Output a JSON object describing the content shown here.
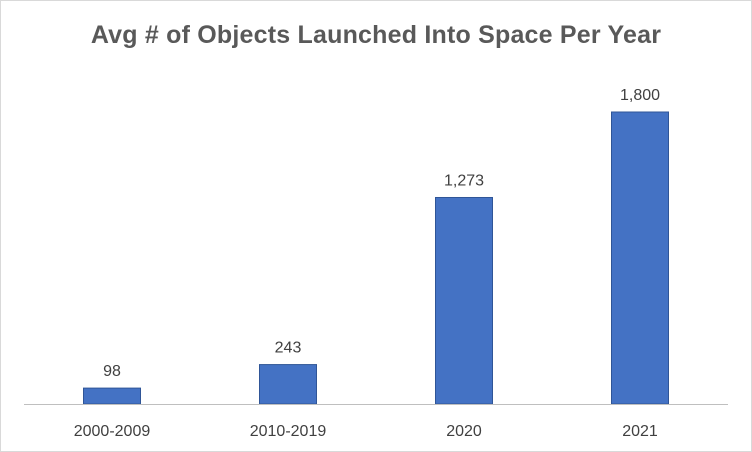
{
  "chart_data": {
    "type": "bar",
    "title": "Avg # of Objects Launched Into Space Per Year",
    "xlabel": "",
    "ylabel": "",
    "categories": [
      "2000-2009",
      "2010-2019",
      "2020",
      "2021"
    ],
    "values": [
      98,
      243,
      1273,
      1800
    ],
    "data_labels": [
      "98",
      "243",
      "1,273",
      "1,800"
    ],
    "ylim": [
      0,
      1800
    ],
    "grid": false,
    "legend": "none",
    "colors": {
      "bar": "#4472c4",
      "bar_edge": "#2f5597",
      "axis": "#bfbfbf",
      "text": "#404040",
      "title": "#595959"
    }
  }
}
